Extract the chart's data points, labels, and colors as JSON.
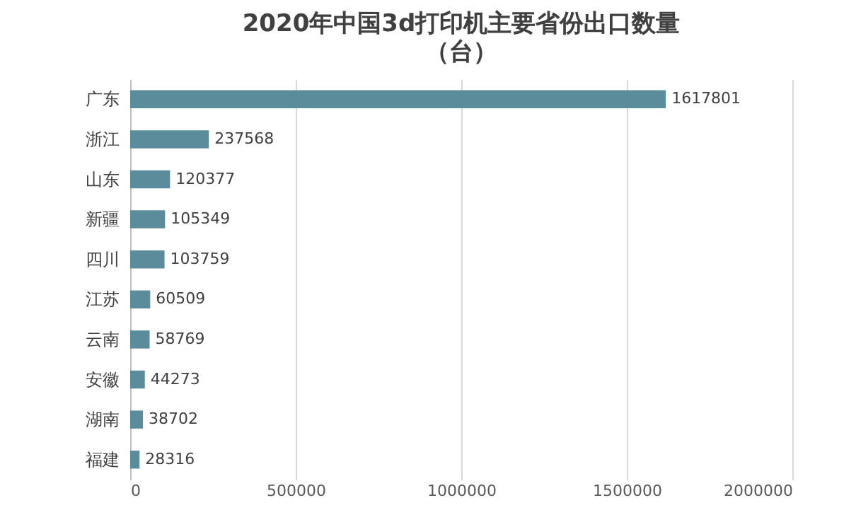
{
  "chart_data": {
    "type": "bar",
    "orientation": "horizontal",
    "title": "2020年中国3d打印机主要省份出口数量",
    "subtitle": "（台）",
    "categories": [
      "广东",
      "浙江",
      "山东",
      "新疆",
      "四川",
      "江苏",
      "云南",
      "安徽",
      "湖南",
      "福建"
    ],
    "values": [
      1617801,
      237568,
      120377,
      105349,
      103759,
      60509,
      58769,
      44273,
      38702,
      28316
    ],
    "color": "#5b8c9c",
    "xlim": [
      0,
      2000000
    ],
    "xticks": [
      0,
      500000,
      1000000,
      1500000,
      2000000
    ],
    "grid": "x",
    "data_labels": true
  }
}
